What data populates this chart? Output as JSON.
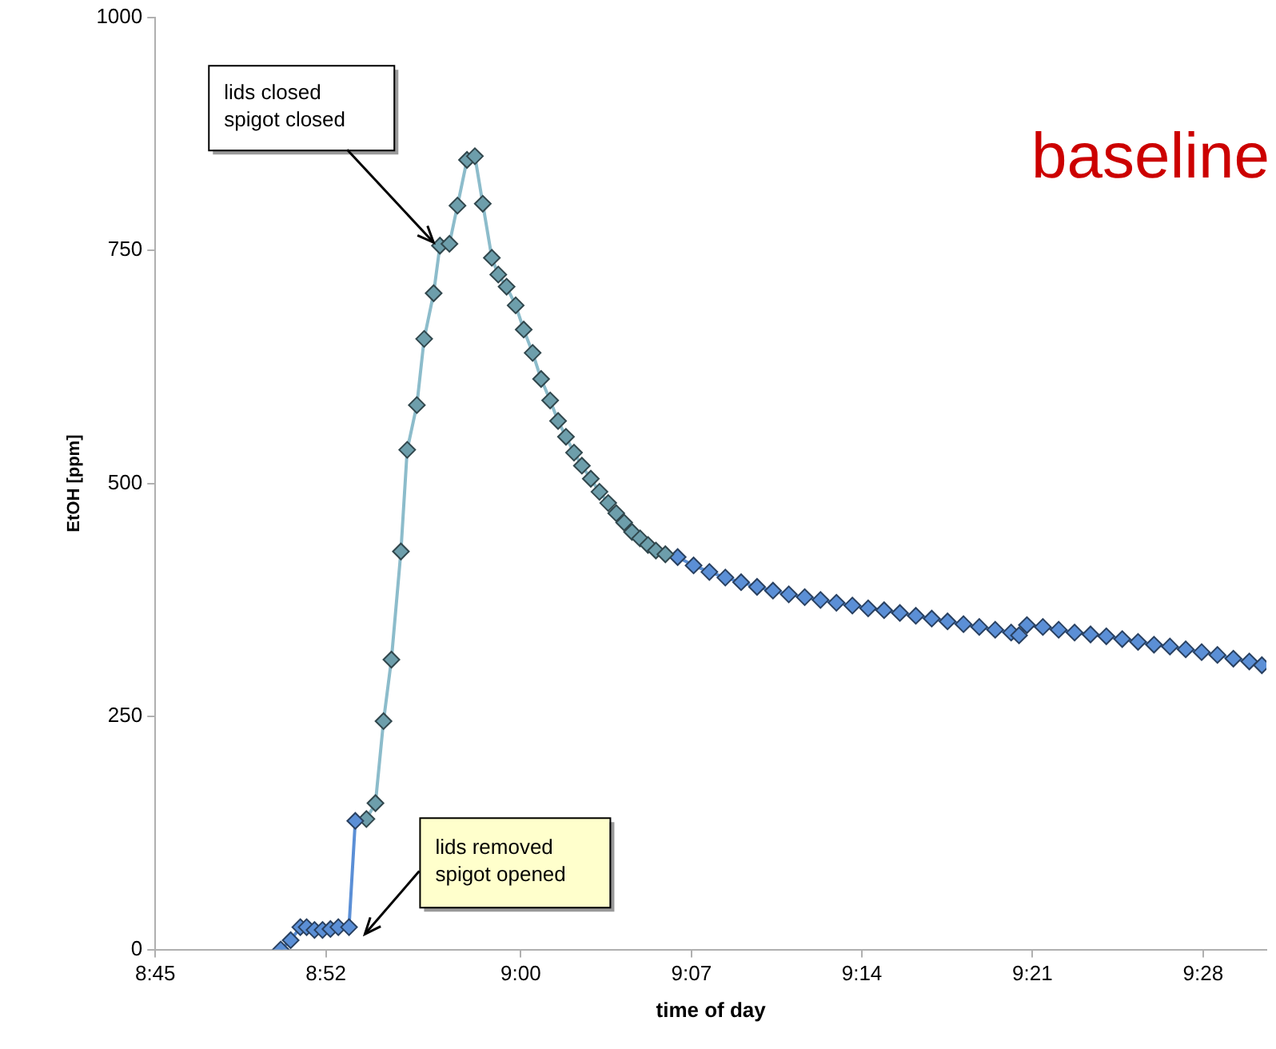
{
  "chart_data": {
    "type": "line",
    "xlabel": "time of day",
    "ylabel": "EtOH [ppm]",
    "xlim": [
      8.75,
      9.51
    ],
    "ylim": [
      0,
      1000
    ],
    "xticks": [
      {
        "value": 8.75,
        "label": "8:45"
      },
      {
        "value": 8.8667,
        "label": "8:52"
      },
      {
        "value": 9.0,
        "label": "9:00"
      },
      {
        "value": 9.1167,
        "label": "9:07"
      },
      {
        "value": 9.2333,
        "label": "9:14"
      },
      {
        "value": 9.35,
        "label": "9:21"
      },
      {
        "value": 9.4667,
        "label": "9:28"
      }
    ],
    "yticks": [
      0,
      250,
      500,
      750,
      1000
    ],
    "grid": false,
    "legend": false,
    "marker": "diamond",
    "line_style": "solid",
    "series": [
      {
        "color": "#5b8fd6",
        "x": [
          8.8358,
          8.8426,
          8.8492,
          8.8535,
          8.8589,
          8.8644,
          8.8698,
          8.8752,
          8.8825,
          8.8868
        ],
        "values": [
          0,
          10,
          24,
          24,
          21,
          21,
          22,
          24,
          24,
          138
        ]
      },
      {
        "color": "#6d9eab",
        "x": [
          8.8944,
          8.9006,
          8.9061,
          8.9115,
          8.918,
          8.9223,
          8.9289,
          8.9339,
          8.9404,
          8.9447,
          8.9512,
          8.9567,
          8.9632,
          8.9686,
          8.974,
          8.9802,
          8.9846,
          8.9903,
          8.9965,
          9.002,
          9.0081,
          9.0139,
          9.0201,
          9.0255,
          9.0309,
          9.0364,
          9.0418,
          9.0479,
          9.0538,
          9.0598,
          9.0653,
          9.0707,
          9.0761,
          9.0816,
          9.087,
          9.0924,
          9.0989
        ],
        "values": [
          140,
          157,
          245,
          311,
          427,
          536,
          584,
          655,
          704,
          755,
          757,
          798,
          847,
          851,
          800,
          742,
          724,
          711,
          691,
          665,
          640,
          612,
          589,
          567,
          550,
          533,
          519,
          505,
          491,
          479,
          468,
          458,
          448,
          441,
          434,
          428,
          424
        ]
      },
      {
        "color": "#5b8fd6",
        "x": [
          9.1073,
          9.1182,
          9.129,
          9.1399,
          9.1507,
          9.1616,
          9.1725,
          9.1833,
          9.1942,
          9.205,
          9.2159,
          9.2268,
          9.2376,
          9.2485,
          9.2593,
          9.2702,
          9.2811,
          9.2919,
          9.3028,
          9.3136,
          9.3245,
          9.3354,
          9.3408,
          9.3462,
          9.3571,
          9.3679,
          9.3788,
          9.3897,
          9.4005,
          9.4114,
          9.4222,
          9.4331,
          9.444,
          9.4548,
          9.4657,
          9.4765,
          9.4874,
          9.4983,
          9.5069
        ],
        "values": [
          421,
          412,
          405,
          399,
          394,
          389,
          385,
          381,
          378,
          375,
          372,
          369,
          366,
          364,
          361,
          358,
          355,
          352,
          349,
          346,
          343,
          340,
          337,
          348,
          346,
          343,
          340,
          338,
          336,
          333,
          330,
          327,
          325,
          322,
          319,
          316,
          312,
          309,
          305
        ]
      }
    ],
    "annotations": [
      {
        "text": "lids closed\nspigot closed",
        "x": 8.9447,
        "y": 755
      },
      {
        "text": "lids removed\nspigot opened",
        "x": 8.889,
        "y": 20
      },
      "baseline"
    ]
  }
}
